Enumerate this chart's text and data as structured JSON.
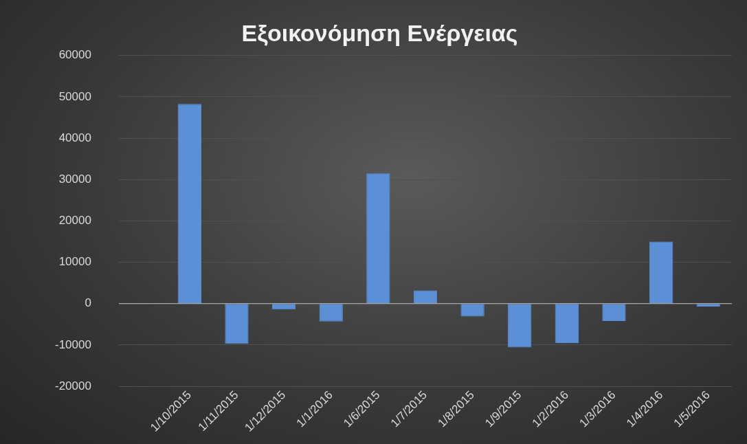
{
  "chart_data": {
    "type": "bar",
    "title": "Εξοικονόμηση Ενέργειας",
    "categories": [
      null,
      "1/10/2015",
      "1/11/2015",
      "1/12/2015",
      "1/1/2016",
      "1/6/2015",
      "1/7/2015",
      "1/8/2015",
      "1/9/2015",
      "1/2/2016",
      "1/3/2016",
      "1/4/2016",
      "1/5/2016"
    ],
    "values": [
      null,
      48300,
      -9700,
      -1400,
      -4300,
      31500,
      3200,
      -3100,
      -10600,
      -9500,
      -4200,
      15000,
      -700
    ],
    "color": "#5b8fd6",
    "ylim": [
      -20000,
      60000
    ],
    "yticks": [
      -20000,
      -10000,
      0,
      10000,
      20000,
      30000,
      40000,
      50000,
      60000
    ],
    "grid": "y",
    "legend": false
  }
}
